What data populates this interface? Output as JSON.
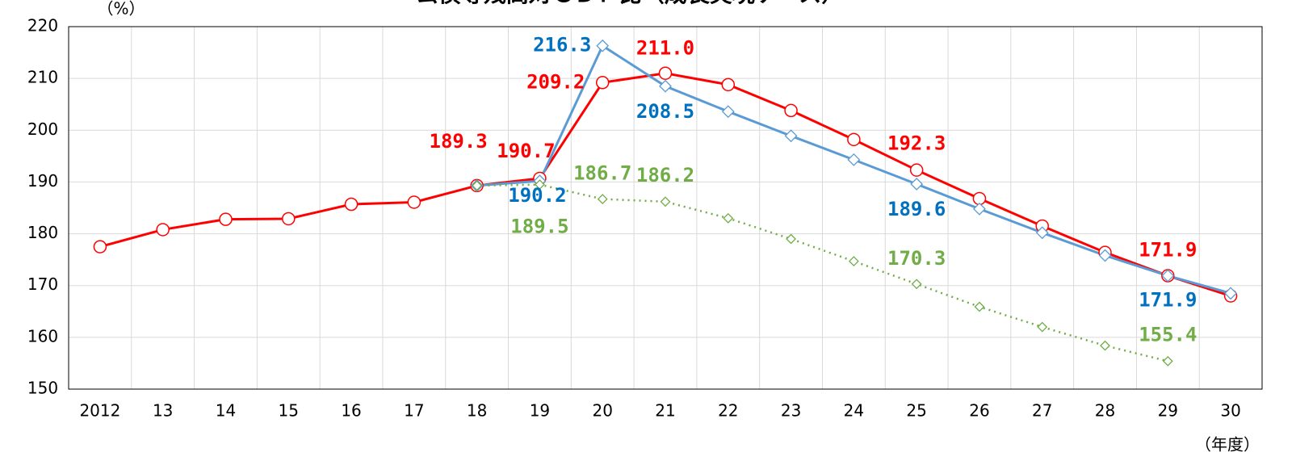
{
  "chart_data": {
    "type": "line",
    "title": "公債等残高対ＧＤＰ比（成長実現ケース）",
    "y_unit": "（%）",
    "x_unit": "（年度）",
    "categories": [
      "2012",
      "13",
      "14",
      "15",
      "16",
      "17",
      "18",
      "19",
      "20",
      "21",
      "22",
      "23",
      "24",
      "25",
      "26",
      "27",
      "28",
      "29",
      "30"
    ],
    "ylim": [
      150,
      220
    ],
    "yticks": [
      150,
      160,
      170,
      180,
      190,
      200,
      210,
      220
    ],
    "grid": true,
    "series": [
      {
        "color": "#ff0000",
        "label_color": "#ff0000",
        "marker": "circle",
        "dash": false,
        "values": [
          177.5,
          180.8,
          182.8,
          182.9,
          185.7,
          186.1,
          189.3,
          190.7,
          209.2,
          211.0,
          208.8,
          203.8,
          198.2,
          192.3,
          186.8,
          181.5,
          176.4,
          171.9,
          168.0
        ],
        "value_labels": [
          null,
          null,
          null,
          null,
          null,
          null,
          "189.3",
          "190.7",
          "209.2",
          "211.0",
          null,
          null,
          null,
          "192.3",
          null,
          null,
          null,
          "171.9",
          null
        ]
      },
      {
        "color": "#5b9bd5",
        "label_color": "#0070c0",
        "marker": "diamond",
        "dash": false,
        "values": [
          null,
          null,
          null,
          null,
          null,
          null,
          189.3,
          190.2,
          216.3,
          208.5,
          203.6,
          198.9,
          194.3,
          189.6,
          184.8,
          180.2,
          175.8,
          171.9,
          168.5
        ],
        "value_labels": [
          null,
          null,
          null,
          null,
          null,
          null,
          null,
          "190.2",
          "216.3",
          "208.5",
          null,
          null,
          null,
          "189.6",
          null,
          null,
          null,
          "171.9",
          null
        ]
      },
      {
        "color": "#70ad47",
        "label_color": "#70ad47",
        "marker": "diamond-small",
        "dash": true,
        "values": [
          null,
          null,
          null,
          null,
          null,
          null,
          189.3,
          189.5,
          186.7,
          186.2,
          183.0,
          179.0,
          174.7,
          170.3,
          165.9,
          162.0,
          158.4,
          155.4,
          null
        ],
        "value_labels": [
          null,
          null,
          null,
          null,
          null,
          null,
          null,
          "189.5",
          "186.7",
          "186.2",
          null,
          null,
          null,
          "170.3",
          null,
          null,
          null,
          "155.4",
          null
        ]
      }
    ]
  }
}
